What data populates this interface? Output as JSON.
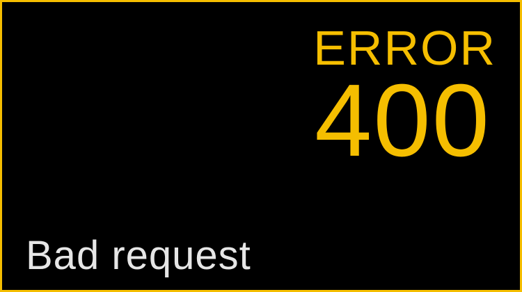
{
  "error": {
    "word": "ERROR",
    "code": "400",
    "description": "Bad request"
  },
  "colors": {
    "accent": "#f5be00",
    "background": "#000000",
    "text": "#e6e6e6"
  }
}
